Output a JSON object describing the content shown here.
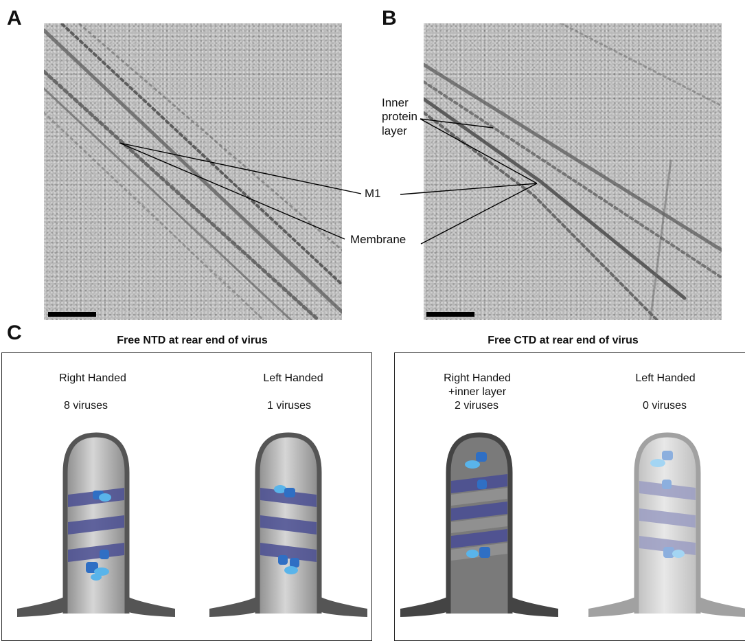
{
  "panels": {
    "a": {
      "letter": "A"
    },
    "b": {
      "letter": "B"
    },
    "c": {
      "letter": "C"
    }
  },
  "annotations": {
    "inner_protein_layer": "Inner\nprotein\nlayer",
    "m1": "M1",
    "membrane": "Membrane"
  },
  "groups": [
    {
      "title": "Free NTD at rear end of virus",
      "cases": [
        {
          "label": "Right Handed",
          "count": "8 viruses"
        },
        {
          "label": "Left Handed",
          "count": "1 viruses"
        }
      ]
    },
    {
      "title": "Free CTD at rear end of virus",
      "cases": [
        {
          "label": "Right Handed\n+inner layer",
          "count": "2 viruses"
        },
        {
          "label": "Left Handed",
          "count": "0 viruses"
        }
      ]
    }
  ],
  "colors": {
    "dark_domain": "#2f6fc4",
    "light_domain": "#59b4ea",
    "helix_band": "#4b4f93",
    "tube_outline": "#555555",
    "tube_fill": "#b8b8b8"
  }
}
